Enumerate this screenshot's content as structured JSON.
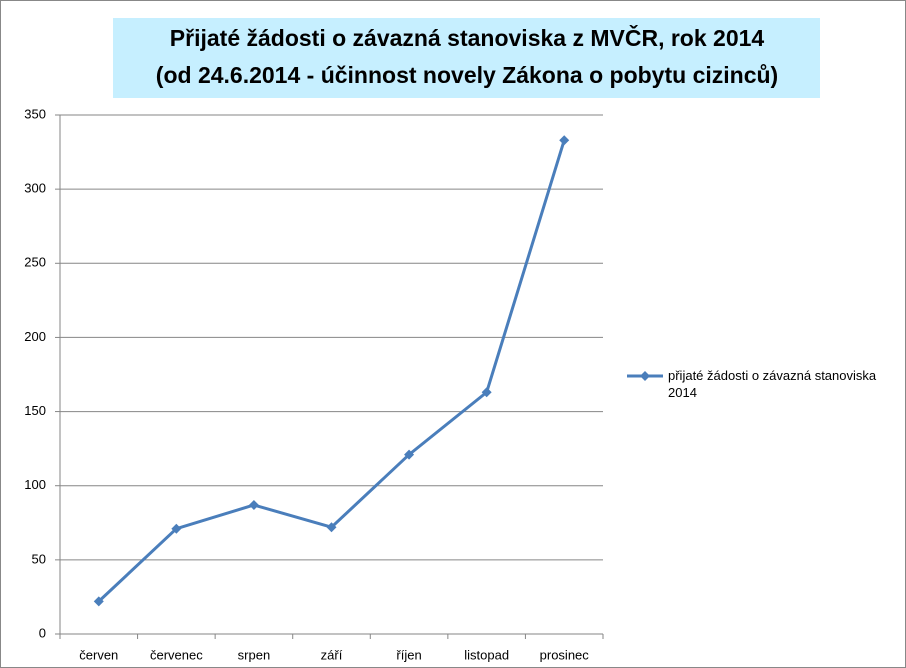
{
  "chart_data": {
    "type": "line",
    "title": [
      "Přijaté žádosti o závazná stanoviska z MVČR,  rok 2014",
      "(od 24.6.2014 - účinnost novely Zákona o pobytu cizinců)"
    ],
    "categories": [
      "červen",
      "červenec",
      "srpen",
      "září",
      "říjen",
      "listopad",
      "prosinec"
    ],
    "series": [
      {
        "name": "přijaté žádosti o závazná stanoviska 2014",
        "color": "#4a7ebb",
        "values": [
          22,
          71,
          87,
          72,
          121,
          163,
          333
        ]
      }
    ],
    "ylim": [
      0,
      350
    ],
    "yticks": [
      0,
      50,
      100,
      150,
      200,
      250,
      300,
      350
    ],
    "grid": true,
    "legend": "right"
  }
}
